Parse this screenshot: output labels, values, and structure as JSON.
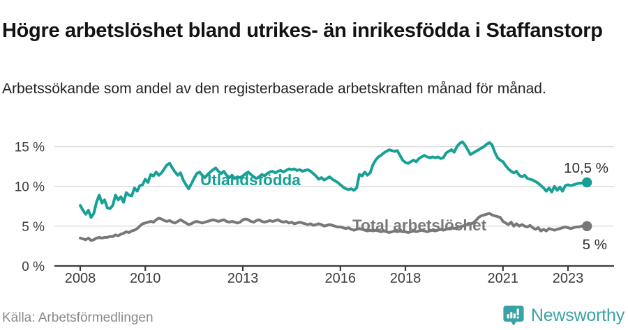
{
  "title": "Högre arbetslöshet bland utrikes- än inrikesfödda i Staffanstorp",
  "subtitle": "Arbetssökande som andel av den registerbaserade arbetskraften månad för månad.",
  "source": "Källa: Arbetsförmedlingen",
  "brand": {
    "name": "Newsworthy",
    "color": "#3aa2a2",
    "icon": "newsworthy-bar-chart-bubble-icon"
  },
  "colors": {
    "foreign_born_line": "#17a095",
    "total_line": "#77787a",
    "gridline": "#dcdcdc",
    "axis": "#3b3b3b",
    "end_label": "#2e2e2e",
    "background": "#ffffff"
  },
  "chart_data": {
    "type": "line",
    "frequency": "monthly",
    "x_start": "2008-01",
    "x_end": "2023-08",
    "x_tick_years": [
      2008,
      2010,
      2013,
      2016,
      2018,
      2021,
      2023
    ],
    "y_ticks": [
      0,
      5,
      10,
      15
    ],
    "y_tick_suffix": " %",
    "ylim": [
      0,
      16.8
    ],
    "grid": "horizontal",
    "legend_position": "inline-labels",
    "series": [
      {
        "name": "Utlandsfödda",
        "color": "#17a095",
        "end_label": "10,5 %",
        "end_value": 10.5,
        "values": [
          7.6,
          7.0,
          6.5,
          7.0,
          6.1,
          6.6,
          8.0,
          8.9,
          7.9,
          8.3,
          7.3,
          7.2,
          7.6,
          8.9,
          8.3,
          8.7,
          8.0,
          9.2,
          8.9,
          8.8,
          9.8,
          9.4,
          10.1,
          10.2,
          10.9,
          10.5,
          11.5,
          11.3,
          11.8,
          11.4,
          11.7,
          12.2,
          12.7,
          12.9,
          12.3,
          11.8,
          11.4,
          11.7,
          10.8,
          10.2,
          9.7,
          10.3,
          11.0,
          11.6,
          11.8,
          11.4,
          11.1,
          11.5,
          11.8,
          12.1,
          12.3,
          11.9,
          11.6,
          11.9,
          11.4,
          11.1,
          11.4,
          11.0,
          11.2,
          11.1,
          11.3,
          11.6,
          11.8,
          11.5,
          11.2,
          11.0,
          11.2,
          11.5,
          11.3,
          11.6,
          11.8,
          11.9,
          11.7,
          11.9,
          12.0,
          11.8,
          12.0,
          12.2,
          12.1,
          12.2,
          12.0,
          12.1,
          11.9,
          12.0,
          12.1,
          11.9,
          11.6,
          11.3,
          10.9,
          11.1,
          10.8,
          11.0,
          11.2,
          10.9,
          10.7,
          10.5,
          10.2,
          9.9,
          9.7,
          9.6,
          9.7,
          9.5,
          9.8,
          11.5,
          11.3,
          11.8,
          11.4,
          11.7,
          12.7,
          13.3,
          13.7,
          13.9,
          14.2,
          14.4,
          14.6,
          14.5,
          14.4,
          14.5,
          13.9,
          13.3,
          13.0,
          12.9,
          13.1,
          13.3,
          13.1,
          13.5,
          13.7,
          13.9,
          13.7,
          13.6,
          13.7,
          13.6,
          13.7,
          13.5,
          13.6,
          14.2,
          14.4,
          14.6,
          14.3,
          15.0,
          15.4,
          15.6,
          15.2,
          14.6,
          14.0,
          14.2,
          14.4,
          14.6,
          14.8,
          15.0,
          15.3,
          15.5,
          15.2,
          14.3,
          13.6,
          13.3,
          13.1,
          12.6,
          12.2,
          11.9,
          11.7,
          11.9,
          11.4,
          11.2,
          11.4,
          11.0,
          10.9,
          10.8,
          10.6,
          10.4,
          10.1,
          9.8,
          9.4,
          9.8,
          9.3,
          10.0,
          9.5,
          9.9,
          9.4,
          10.1,
          10.2,
          10.1,
          10.2,
          10.3,
          10.4,
          10.4,
          10.5,
          10.5
        ]
      },
      {
        "name": "Total arbetslöshet",
        "color": "#77787a",
        "end_label": "5 %",
        "end_value": 5.0,
        "values": [
          3.5,
          3.4,
          3.3,
          3.5,
          3.2,
          3.3,
          3.5,
          3.6,
          3.5,
          3.6,
          3.6,
          3.7,
          3.7,
          3.9,
          3.8,
          4.0,
          4.1,
          4.3,
          4.2,
          4.4,
          4.5,
          4.7,
          5.0,
          5.3,
          5.4,
          5.5,
          5.6,
          5.5,
          5.8,
          6.0,
          5.9,
          5.7,
          5.6,
          5.7,
          5.5,
          5.4,
          5.6,
          5.8,
          5.6,
          5.4,
          5.2,
          5.3,
          5.5,
          5.6,
          5.5,
          5.4,
          5.5,
          5.6,
          5.7,
          5.8,
          5.7,
          5.6,
          5.7,
          5.8,
          5.6,
          5.5,
          5.6,
          5.5,
          5.4,
          5.5,
          5.8,
          5.9,
          5.8,
          5.6,
          5.5,
          5.7,
          5.8,
          5.6,
          5.5,
          5.6,
          5.7,
          5.6,
          5.7,
          5.8,
          5.6,
          5.5,
          5.6,
          5.4,
          5.5,
          5.3,
          5.4,
          5.5,
          5.4,
          5.3,
          5.2,
          5.3,
          5.1,
          5.2,
          5.3,
          5.2,
          5.0,
          5.1,
          5.2,
          5.1,
          5.0,
          4.9,
          4.9,
          4.8,
          4.7,
          4.8,
          4.6,
          4.5,
          4.6,
          4.7,
          4.6,
          4.5,
          4.4,
          4.5,
          4.4,
          4.5,
          4.4,
          4.3,
          4.4,
          4.3,
          4.2,
          4.3,
          4.4,
          4.3,
          4.4,
          4.3,
          4.3,
          4.2,
          4.3,
          4.4,
          4.3,
          4.4,
          4.5,
          4.4,
          4.3,
          4.4,
          4.5,
          4.4,
          4.5,
          4.6,
          4.5,
          4.6,
          4.7,
          4.8,
          4.7,
          4.8,
          4.9,
          5.0,
          5.1,
          5.2,
          5.3,
          5.4,
          5.7,
          6.1,
          6.3,
          6.4,
          6.5,
          6.6,
          6.4,
          6.3,
          6.2,
          6.1,
          5.6,
          5.4,
          5.2,
          5.5,
          5.0,
          5.3,
          5.0,
          5.2,
          5.0,
          4.9,
          5.1,
          4.8,
          4.6,
          4.8,
          4.4,
          4.6,
          4.4,
          4.7,
          4.6,
          4.5,
          4.6,
          4.7,
          4.8,
          4.9,
          4.8,
          4.7,
          4.8,
          4.9,
          4.9,
          5.0,
          5.0,
          5.0
        ]
      }
    ]
  }
}
